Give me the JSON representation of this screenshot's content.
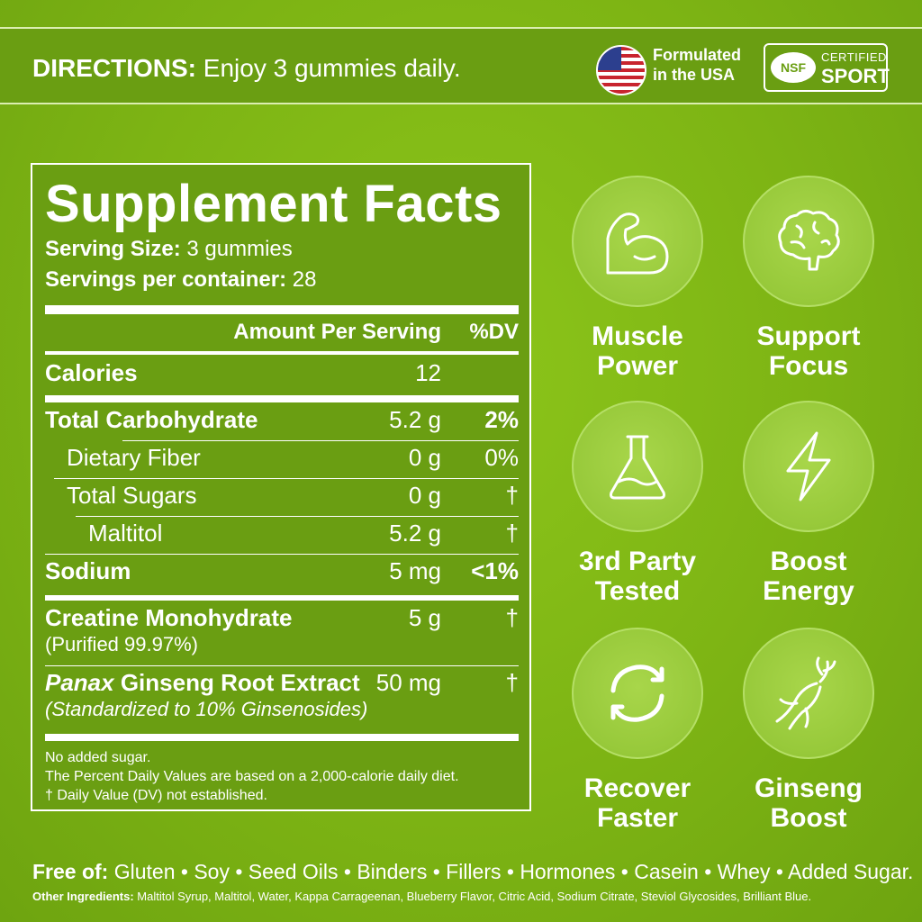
{
  "header": {
    "directions_label": "DIRECTIONS:",
    "directions_text": " Enjoy 3 gummies daily.",
    "flag_icon": "us-flag-icon",
    "made_line1": "Formulated",
    "made_line2": "in the USA",
    "nsf_badge": "NSF",
    "nsf_certified": "CERTIFIED",
    "nsf_sport": "SPORT"
  },
  "facts": {
    "title": "Supplement Facts",
    "serving_size_label": "Serving Size:",
    "serving_size_value": " 3 gummies",
    "servings_label": "Servings per container:",
    "servings_value": " 28",
    "col_amount": "Amount Per Serving",
    "col_dv": "%DV",
    "rows": [
      {
        "label": "Calories",
        "amount": "12",
        "dv": ""
      },
      {
        "label": "Total Carbohydrate",
        "amount": "5.2 g",
        "dv": "2%"
      },
      {
        "label": "Dietary Fiber",
        "amount": "0 g",
        "dv": "0%"
      },
      {
        "label": "Total Sugars",
        "amount": "0 g",
        "dv": "†"
      },
      {
        "label": "Maltitol",
        "amount": "5.2 g",
        "dv": "†"
      },
      {
        "label": "Sodium",
        "amount": "5 mg",
        "dv": "<1%"
      },
      {
        "label": "Creatine Monohydrate",
        "sub": "(Purified 99.97%)",
        "amount": "5 g",
        "dv": "†"
      },
      {
        "label_italic": "Panax",
        "label": " Ginseng Root Extract",
        "sub": "(Standardized to 10% Ginsenosides)",
        "amount": "50 mg",
        "dv": "†"
      }
    ],
    "notes": [
      "No added sugar.",
      "The Percent Daily Values are based on a 2,000-calorie daily diet.",
      "† Daily Value (DV) not established."
    ]
  },
  "features": [
    {
      "icon": "muscle-arm-icon",
      "line1": "Muscle",
      "line2": "Power"
    },
    {
      "icon": "brain-icon",
      "line1": "Support",
      "line2": "Focus"
    },
    {
      "icon": "lab-flask-icon",
      "line1": "3rd Party",
      "line2": "Tested"
    },
    {
      "icon": "lightning-bolt-icon",
      "line1": "Boost",
      "line2": "Energy"
    },
    {
      "icon": "recycle-arrows-icon",
      "line1": "Recover",
      "line2": "Faster"
    },
    {
      "icon": "ginseng-root-icon",
      "line1": "Ginseng",
      "line2": "Boost"
    }
  ],
  "footer": {
    "free_label": "Free of:",
    "free_text": " Gluten • Soy • Seed Oils • Binders • Fillers • Hormones • Casein • Whey • Added Sugar.",
    "other_label": "Other Ingredients:",
    "other_text": " Maltitol Syrup, Maltitol, Water, Kappa Carrageenan, Blueberry Flavor, Citric Acid, Sodium Citrate, Steviol Glycosides, Brilliant Blue."
  },
  "colors": {
    "background": "#7db414",
    "panel": "#6a9e12",
    "text": "#ffffff"
  }
}
